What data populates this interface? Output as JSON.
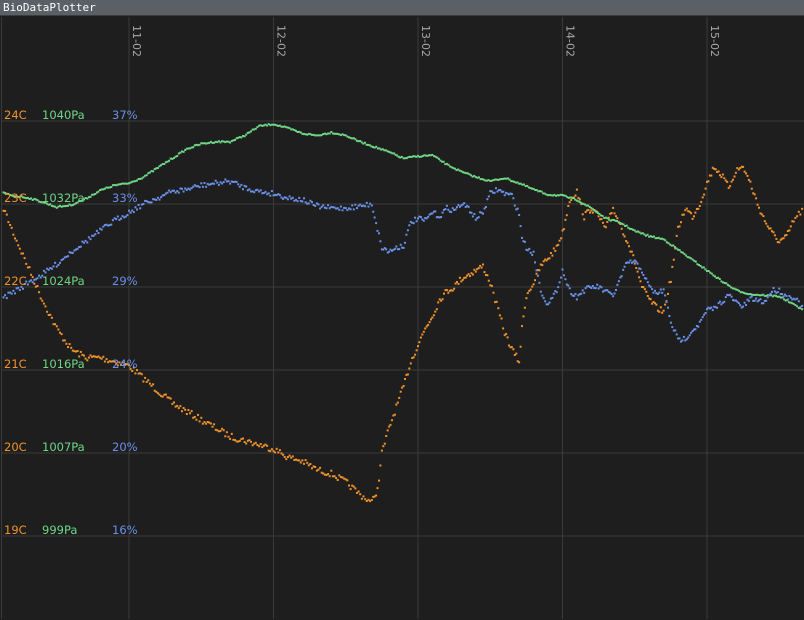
{
  "window": {
    "title": "BioDataPlotter"
  },
  "chart_data": {
    "type": "scatter",
    "grid": true,
    "x": {
      "ticks": [
        "11-02",
        "12-02",
        "13-02",
        "14-02",
        "15-02"
      ],
      "range": [
        10.123,
        15.673
      ]
    },
    "y_axes": [
      {
        "name": "temperature",
        "color": "#f0922c",
        "ticks": [
          {
            "v": 24,
            "label": "24C"
          },
          {
            "v": 23,
            "label": "23C"
          },
          {
            "v": 22,
            "label": "22C"
          },
          {
            "v": 21,
            "label": "21C"
          },
          {
            "v": 20,
            "label": "20C"
          },
          {
            "v": 19,
            "label": "19C"
          }
        ]
      },
      {
        "name": "pressure",
        "color": "#6ed685",
        "ticks": [
          {
            "v": 1040,
            "label": "1040Pa"
          },
          {
            "v": 1032,
            "label": "1032Pa"
          },
          {
            "v": 1024,
            "label": "1024Pa"
          },
          {
            "v": 1016,
            "label": "1016Pa"
          },
          {
            "v": 1007,
            "label": "1007Pa"
          },
          {
            "v": 999,
            "label": "999Pa"
          }
        ]
      },
      {
        "name": "humidity",
        "color": "#6a90e8",
        "ticks": [
          {
            "v": 37,
            "label": "37%"
          },
          {
            "v": 33,
            "label": "33%"
          },
          {
            "v": 29,
            "label": "29%"
          },
          {
            "v": 24,
            "label": "24%"
          },
          {
            "v": 20,
            "label": "20%"
          },
          {
            "v": 16,
            "label": "16%"
          }
        ]
      }
    ],
    "series": [
      {
        "axis": 0,
        "color": "#f0922c",
        "x": [
          10.12,
          10.2,
          10.3,
          10.4,
          10.5,
          10.6,
          10.7,
          10.8,
          10.9,
          11.0,
          11.1,
          11.2,
          11.3,
          11.4,
          11.5,
          11.6,
          11.7,
          11.8,
          11.9,
          12.0,
          12.1,
          12.2,
          12.3,
          12.4,
          12.5,
          12.6,
          12.68,
          12.7,
          12.72,
          12.75,
          12.8,
          12.85,
          12.9,
          12.95,
          13.0,
          13.05,
          13.1,
          13.15,
          13.2,
          13.25,
          13.3,
          13.35,
          13.4,
          13.45,
          13.5,
          13.6,
          13.65,
          13.7,
          13.72,
          13.75,
          13.8,
          13.85,
          13.9,
          13.95,
          14.0,
          14.05,
          14.1,
          14.15,
          14.2,
          14.25,
          14.3,
          14.35,
          14.4,
          14.45,
          14.5,
          14.55,
          14.6,
          14.65,
          14.7,
          14.75,
          14.8,
          14.85,
          14.9,
          14.95,
          15.0,
          15.05,
          15.1,
          15.15,
          15.2,
          15.25,
          15.3,
          15.35,
          15.4,
          15.45,
          15.5,
          15.55,
          15.6,
          15.67
        ],
        "y": [
          23.0,
          22.65,
          22.25,
          21.85,
          21.5,
          21.25,
          21.15,
          21.15,
          21.1,
          21.05,
          20.9,
          20.75,
          20.6,
          20.5,
          20.4,
          20.3,
          20.2,
          20.15,
          20.1,
          20.05,
          19.95,
          19.9,
          19.8,
          19.75,
          19.65,
          19.5,
          19.4,
          19.5,
          19.55,
          20.0,
          20.3,
          20.55,
          20.8,
          21.1,
          21.3,
          21.5,
          21.65,
          21.85,
          21.95,
          22.0,
          22.1,
          22.15,
          22.2,
          22.25,
          22.05,
          21.45,
          21.25,
          21.1,
          21.5,
          21.9,
          22.05,
          22.25,
          22.35,
          22.45,
          22.65,
          23.05,
          23.15,
          22.85,
          22.95,
          22.85,
          22.7,
          22.95,
          22.75,
          22.55,
          22.3,
          22.0,
          21.85,
          21.75,
          21.7,
          22.1,
          22.7,
          22.95,
          22.85,
          23.0,
          23.25,
          23.45,
          23.35,
          23.2,
          23.4,
          23.45,
          23.25,
          23.0,
          22.8,
          22.65,
          22.55,
          22.6,
          22.8,
          22.95
        ]
      },
      {
        "axis": 1,
        "color": "#6ed685",
        "x": [
          10.12,
          10.2,
          10.3,
          10.4,
          10.5,
          10.6,
          10.7,
          10.8,
          10.9,
          11.0,
          11.1,
          11.2,
          11.3,
          11.4,
          11.5,
          11.6,
          11.7,
          11.8,
          11.9,
          12.0,
          12.1,
          12.2,
          12.3,
          12.4,
          12.5,
          12.6,
          12.7,
          12.8,
          12.9,
          13.0,
          13.1,
          13.2,
          13.3,
          13.4,
          13.5,
          13.6,
          13.7,
          13.8,
          13.9,
          14.0,
          14.1,
          14.2,
          14.3,
          14.4,
          14.5,
          14.6,
          14.7,
          14.8,
          14.9,
          15.0,
          15.1,
          15.2,
          15.3,
          15.4,
          15.5,
          15.6,
          15.67
        ],
        "y": [
          1033.1,
          1032.8,
          1032.6,
          1032.2,
          1031.7,
          1031.9,
          1032.5,
          1033.3,
          1033.8,
          1034.0,
          1034.6,
          1035.5,
          1036.4,
          1037.3,
          1037.8,
          1038.0,
          1038.0,
          1038.6,
          1039.5,
          1039.7,
          1039.3,
          1038.8,
          1038.6,
          1038.9,
          1038.6,
          1038.0,
          1037.5,
          1037.0,
          1036.4,
          1036.6,
          1036.7,
          1035.8,
          1035.1,
          1034.6,
          1034.2,
          1034.5,
          1034.0,
          1033.4,
          1032.9,
          1032.8,
          1032.4,
          1031.6,
          1030.6,
          1030.2,
          1029.4,
          1028.9,
          1028.6,
          1027.6,
          1026.6,
          1025.6,
          1024.6,
          1023.7,
          1023.3,
          1023.2,
          1023.1,
          1022.3,
          1021.8
        ]
      },
      {
        "axis": 2,
        "color": "#6a90e8",
        "x": [
          10.12,
          10.2,
          10.3,
          10.4,
          10.5,
          10.6,
          10.7,
          10.8,
          10.9,
          11.0,
          11.1,
          11.2,
          11.3,
          11.4,
          11.5,
          11.6,
          11.7,
          11.8,
          11.9,
          12.0,
          12.1,
          12.2,
          12.3,
          12.4,
          12.5,
          12.6,
          12.68,
          12.72,
          12.75,
          12.8,
          12.85,
          12.9,
          12.95,
          13.0,
          13.05,
          13.1,
          13.15,
          13.2,
          13.25,
          13.3,
          13.35,
          13.4,
          13.45,
          13.5,
          13.55,
          13.6,
          13.65,
          13.7,
          13.72,
          13.75,
          13.8,
          13.85,
          13.9,
          13.95,
          14.0,
          14.05,
          14.1,
          14.15,
          14.2,
          14.25,
          14.3,
          14.35,
          14.4,
          14.45,
          14.5,
          14.55,
          14.6,
          14.65,
          14.7,
          14.75,
          14.8,
          14.85,
          14.9,
          14.95,
          15.0,
          15.05,
          15.1,
          15.15,
          15.2,
          15.25,
          15.3,
          15.35,
          15.4,
          15.45,
          15.5,
          15.55,
          15.6,
          15.67
        ],
        "y": [
          28.3,
          28.7,
          29.2,
          29.6,
          30.1,
          30.7,
          31.2,
          31.7,
          32.2,
          32.6,
          33.0,
          33.3,
          33.6,
          33.7,
          33.9,
          34.0,
          34.1,
          33.8,
          33.6,
          33.5,
          33.3,
          33.2,
          32.9,
          32.8,
          32.8,
          32.9,
          33.0,
          31.8,
          30.9,
          30.7,
          30.9,
          31.0,
          32.1,
          32.3,
          32.2,
          32.6,
          32.4,
          32.8,
          32.7,
          33.0,
          32.8,
          32.3,
          32.6,
          33.5,
          33.7,
          33.5,
          33.4,
          32.5,
          31.4,
          30.9,
          30.6,
          28.8,
          27.9,
          28.6,
          29.8,
          28.8,
          28.4,
          28.8,
          29.0,
          29.0,
          28.7,
          28.5,
          29.4,
          30.2,
          30.2,
          29.8,
          29.0,
          28.6,
          28.8,
          26.9,
          25.8,
          25.9,
          26.4,
          26.8,
          27.6,
          27.7,
          28.1,
          28.5,
          28.1,
          27.8,
          28.3,
          28.2,
          28.1,
          28.8,
          28.8,
          28.4,
          28.4,
          27.7
        ]
      }
    ]
  }
}
